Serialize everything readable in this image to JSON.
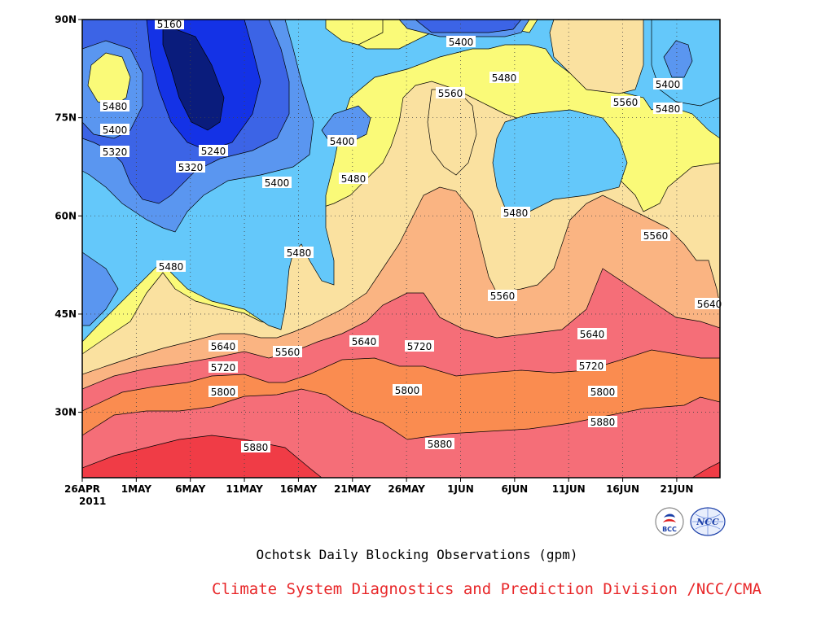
{
  "chart_data": {
    "type": "heatmap",
    "title": "Ochotsk Daily Blocking Observations (gpm)",
    "subtitle": "Climate System Diagnostics and Prediction Division /NCC/CMA",
    "x_ticks": [
      "26APR",
      "1MAY",
      "6MAY",
      "11MAY",
      "16MAY",
      "21MAY",
      "26MAY",
      "1JUN",
      "6JUN",
      "11JUN",
      "16JUN",
      "21JUN"
    ],
    "x_year_label": "2011",
    "y_ticks": [
      "90N",
      "75N",
      "60N",
      "45N",
      "30N"
    ],
    "x_range": [
      "2011-04-26",
      "2011-06-24"
    ],
    "y_range_deg": [
      20,
      90
    ],
    "grid": "dotted",
    "colors": {
      "lt5200": "#0a1c7c",
      "5200_5280": "#1432e6",
      "5280_5360": "#3c64e6",
      "5360_5440": "#5a96f0",
      "5440_5520": "#64c8fa",
      "5520_5600": "#fafa78",
      "5600_5680": "#fae1a0",
      "5680_5760": "#fab482",
      "5760_5840": "#fa8c50",
      "5840_5920": "#f56e78",
      "gt5920": "#f03c46"
    },
    "contour_labels": [
      {
        "text": "5160"
      },
      {
        "text": "5480"
      },
      {
        "text": "5400"
      },
      {
        "text": "5320"
      },
      {
        "text": "5240"
      },
      {
        "text": "5320"
      },
      {
        "text": "5400"
      },
      {
        "text": "5480"
      },
      {
        "text": "5400"
      },
      {
        "text": "5480"
      },
      {
        "text": "5480"
      },
      {
        "text": "5560"
      },
      {
        "text": "5480"
      },
      {
        "text": "5400"
      },
      {
        "text": "5480"
      },
      {
        "text": "5560"
      },
      {
        "text": "5400"
      },
      {
        "text": "5480"
      },
      {
        "text": "5560"
      },
      {
        "text": "5560"
      },
      {
        "text": "5640"
      },
      {
        "text": "5640"
      },
      {
        "text": "5720"
      },
      {
        "text": "5560"
      },
      {
        "text": "5640"
      },
      {
        "text": "5720"
      },
      {
        "text": "5640"
      },
      {
        "text": "5720"
      },
      {
        "text": "5800"
      },
      {
        "text": "5800"
      },
      {
        "text": "5800"
      },
      {
        "text": "5880"
      },
      {
        "text": "5880"
      },
      {
        "text": "5880"
      }
    ]
  },
  "logos": {
    "left": "BCC",
    "right": "NCC"
  }
}
